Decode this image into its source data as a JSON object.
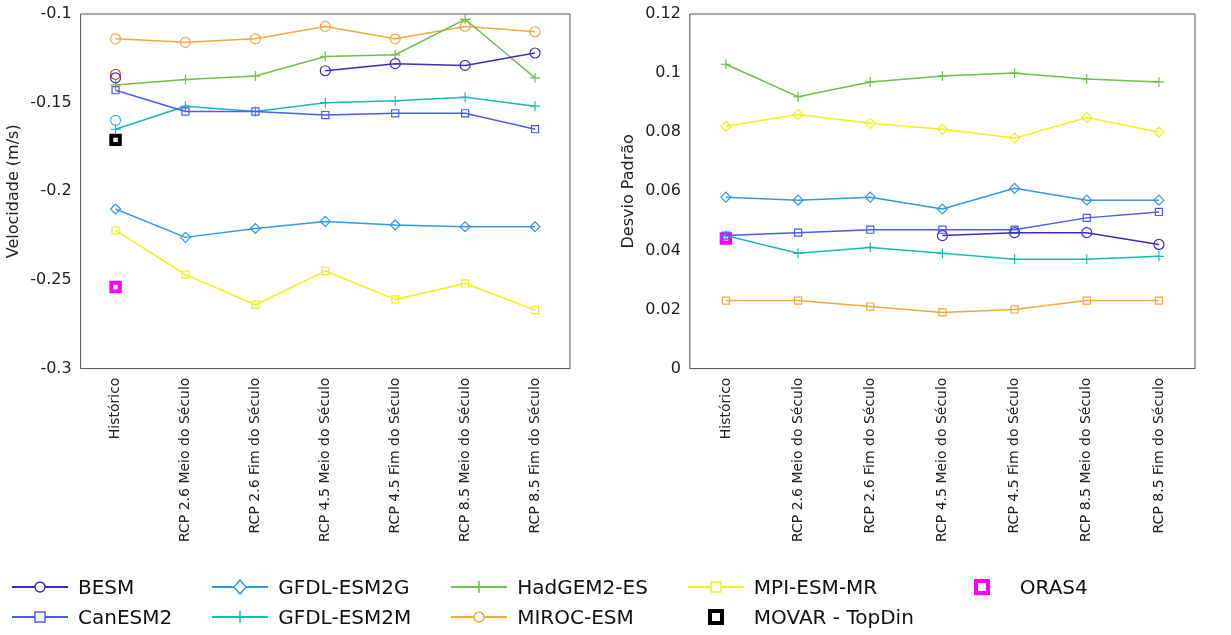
{
  "chart_data": [
    {
      "type": "line",
      "ylabel": "Velocidade (m/s)",
      "categories": [
        "Histórico",
        "RCP 2.6 Meio do Século",
        "RCP 2.6 Fim do Século",
        "RCP 4.5 Meio do Século",
        "RCP 4.5 Fim do Século",
        "RCP 8.5 Meio do Século",
        "RCP 8.5 Fim do Século"
      ],
      "ylim": [
        -0.3,
        -0.1
      ],
      "yticks": [
        -0.3,
        -0.25,
        -0.2,
        -0.15,
        -0.1
      ],
      "grid": false,
      "legend": "bottom",
      "line_style": "solid",
      "series": [
        {
          "name": "BESM",
          "color": "#3c2dbd",
          "marker": "circle",
          "values": [
            -0.136,
            null,
            null,
            -0.132,
            -0.128,
            -0.129,
            -0.122
          ]
        },
        {
          "name": "CanESM2",
          "color": "#4b5cf0",
          "marker": "square",
          "values": [
            -0.143,
            -0.155,
            -0.155,
            -0.157,
            -0.156,
            -0.156,
            -0.165
          ]
        },
        {
          "name": "GFDL-ESM2G",
          "color": "#3399e6",
          "marker": "diamond",
          "values": [
            -0.21,
            -0.226,
            -0.221,
            -0.217,
            -0.219,
            -0.22,
            -0.22
          ]
        },
        {
          "name": "GFDL-ESM2M",
          "color": "#1ab8b0",
          "marker": "cross",
          "values": [
            -0.165,
            -0.152,
            -0.155,
            -0.15,
            -0.149,
            -0.147,
            -0.152
          ]
        },
        {
          "name": "HadGEM2-ES",
          "color": "#6ec04a",
          "marker": "cross",
          "values": [
            -0.14,
            -0.137,
            -0.135,
            -0.124,
            -0.123,
            -0.103,
            -0.136
          ]
        },
        {
          "name": "MIROC-ESM",
          "color": "#f5a742",
          "marker": "circle",
          "values": [
            -0.114,
            -0.116,
            -0.114,
            -0.107,
            -0.114,
            -0.107,
            -0.11
          ]
        },
        {
          "name": "MPI-ESM-MR",
          "color": "#f0f01a",
          "marker": "square",
          "values": [
            -0.222,
            -0.247,
            -0.264,
            -0.245,
            -0.261,
            -0.252,
            -0.267
          ]
        },
        {
          "type": "scatter",
          "color": "#d95319",
          "marker": "circle",
          "values": [
            -0.134,
            null,
            null,
            null,
            null,
            null,
            null
          ]
        },
        {
          "type": "scatter",
          "color": "#4da6e8",
          "marker": "circle",
          "values": [
            -0.16,
            null,
            null,
            null,
            null,
            null,
            null
          ]
        },
        {
          "name": "MOVAR - TopDin",
          "type": "scatter",
          "color": "#000000",
          "marker": "square",
          "values": [
            -0.171,
            null,
            null,
            null,
            null,
            null,
            null
          ]
        },
        {
          "name": "ORAS4",
          "type": "scatter",
          "color": "#ff00ff",
          "marker": "square",
          "values": [
            -0.254,
            null,
            null,
            null,
            null,
            null,
            null
          ]
        }
      ]
    },
    {
      "type": "line",
      "ylabel": "Desvio Padrão",
      "categories": [
        "Histórico",
        "RCP 2.6 Meio do Século",
        "RCP 2.6 Fim do Século",
        "RCP 4.5 Meio do Século",
        "RCP 4.5 Fim do Século",
        "RCP 8.5 Meio do Século",
        "RCP 8.5 Fim do Século"
      ],
      "ylim": [
        0,
        0.12
      ],
      "yticks": [
        0,
        0.02,
        0.04,
        0.06,
        0.08,
        0.1,
        0.12
      ],
      "grid": false,
      "legend": "bottom",
      "line_style": "solid",
      "series": [
        {
          "name": "BESM",
          "color": "#3c2dbd",
          "marker": "circle",
          "values": [
            null,
            null,
            null,
            0.045,
            0.046,
            0.046,
            0.042
          ]
        },
        {
          "name": "CanESM2",
          "color": "#4b5cf0",
          "marker": "square",
          "values": [
            0.045,
            0.046,
            0.047,
            0.047,
            0.047,
            0.051,
            0.053
          ]
        },
        {
          "name": "GFDL-ESM2G",
          "color": "#3399e6",
          "marker": "diamond",
          "values": [
            0.058,
            0.057,
            0.058,
            0.054,
            0.061,
            0.057,
            0.057
          ]
        },
        {
          "name": "GFDL-ESM2M",
          "color": "#1ab8b0",
          "marker": "cross",
          "values": [
            0.045,
            0.039,
            0.041,
            0.039,
            0.037,
            0.037,
            0.038
          ]
        },
        {
          "name": "HadGEM2-ES",
          "color": "#6ec04a",
          "marker": "cross",
          "values": [
            0.103,
            0.092,
            0.097,
            0.099,
            0.1,
            0.098,
            0.097
          ]
        },
        {
          "name": "MIROC-ESM",
          "color": "#f5a742",
          "marker": "square",
          "values": [
            0.023,
            0.023,
            0.021,
            0.019,
            0.02,
            0.023,
            0.023
          ]
        },
        {
          "name": "MPI-ESM-MR",
          "color": "#f0f01a",
          "marker": "diamond",
          "values": [
            0.082,
            0.086,
            0.083,
            0.081,
            0.078,
            0.085,
            0.08
          ]
        },
        {
          "name": "ORAS4",
          "type": "scatter",
          "color": "#ff00ff",
          "marker": "square",
          "values": [
            0.044,
            null,
            null,
            null,
            null,
            null,
            null
          ]
        }
      ]
    }
  ]
}
